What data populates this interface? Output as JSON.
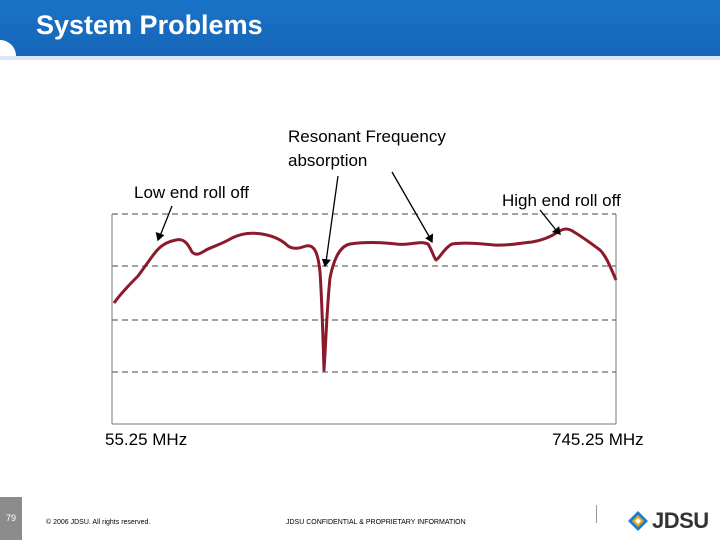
{
  "header": {
    "title": "System Problems"
  },
  "annotations": {
    "resonant_line1": "Resonant Frequency",
    "resonant_line2": "absorption",
    "low_end": "Low end roll off",
    "high_end": "High end roll off"
  },
  "axis": {
    "start": "55.25 MHz",
    "end": "745.25 MHz"
  },
  "footer": {
    "page_number": "79",
    "copyright": "© 2006 JDSU. All rights reserved.",
    "confidential": "JDSU CONFIDENTIAL & PROPRIETARY INFORMATION",
    "logo_text": "JDSU",
    "logo_icon": "jdsu-logo-icon"
  },
  "colors": {
    "header": "#1565b8",
    "trace": "#8b1a2b",
    "grid": "#555555"
  }
}
